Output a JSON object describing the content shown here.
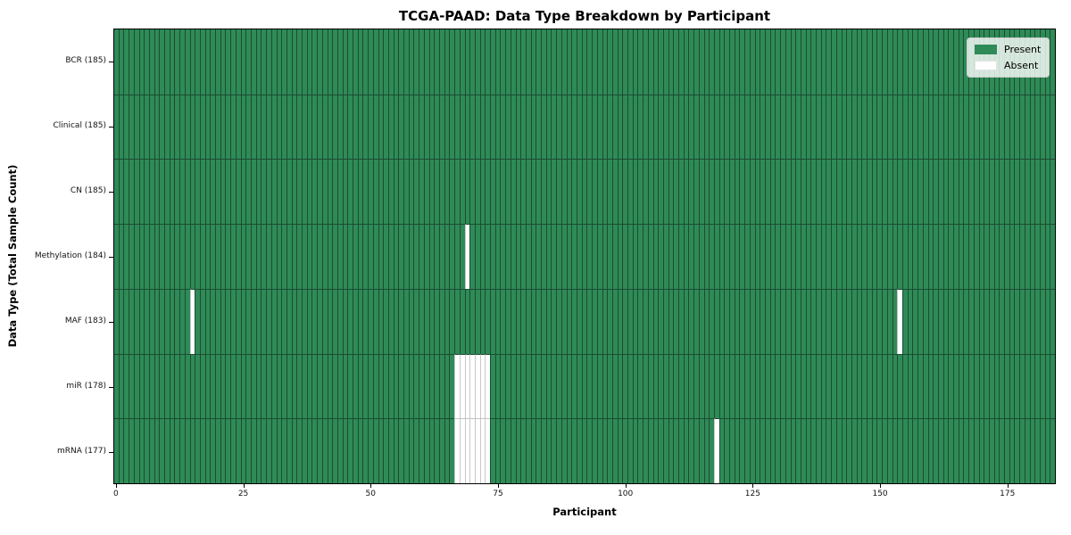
{
  "figure": {
    "background": "#ffffff"
  },
  "colors": {
    "present": "#2e8b57",
    "present_edge": "#1d4c31",
    "absent": "#ffffff",
    "absent_edge": "#c8c8c8",
    "row_line_light": "#c2c2c2",
    "spine": "#000000",
    "legend_border": "#cccccc"
  },
  "chart_data": {
    "type": "heatmap",
    "title": "TCGA-PAAD: Data Type Breakdown by Participant",
    "xlabel": "Participant",
    "ylabel": "Data Type (Total Sample Count)",
    "x_ticks": [
      0,
      25,
      50,
      75,
      100,
      125,
      150,
      175
    ],
    "xlim": [
      -0.5,
      184.5
    ],
    "n_participants": 185,
    "grid": false,
    "legend_position": "upper right",
    "legend": [
      {
        "label": "Present",
        "color": "#2e8b57"
      },
      {
        "label": "Absent",
        "color": "#ffffff"
      }
    ],
    "rows": [
      {
        "label": "BCR (185)",
        "data_type": "BCR",
        "total_samples": 185,
        "absent_participants": []
      },
      {
        "label": "Clinical (185)",
        "data_type": "Clinical",
        "total_samples": 185,
        "absent_participants": []
      },
      {
        "label": "CN (185)",
        "data_type": "CN",
        "total_samples": 185,
        "absent_participants": []
      },
      {
        "label": "Methylation (184)",
        "data_type": "Methylation",
        "total_samples": 184,
        "absent_participants": [
          69
        ]
      },
      {
        "label": "MAF (183)",
        "data_type": "MAF",
        "total_samples": 183,
        "absent_participants": [
          15,
          154
        ]
      },
      {
        "label": "miR (178)",
        "data_type": "miR",
        "total_samples": 178,
        "absent_participants": [
          67,
          68,
          69,
          70,
          71,
          72,
          73
        ]
      },
      {
        "label": "mRNA (177)",
        "data_type": "mRNA",
        "total_samples": 177,
        "absent_participants": [
          67,
          68,
          69,
          70,
          71,
          72,
          73,
          118
        ]
      }
    ]
  }
}
